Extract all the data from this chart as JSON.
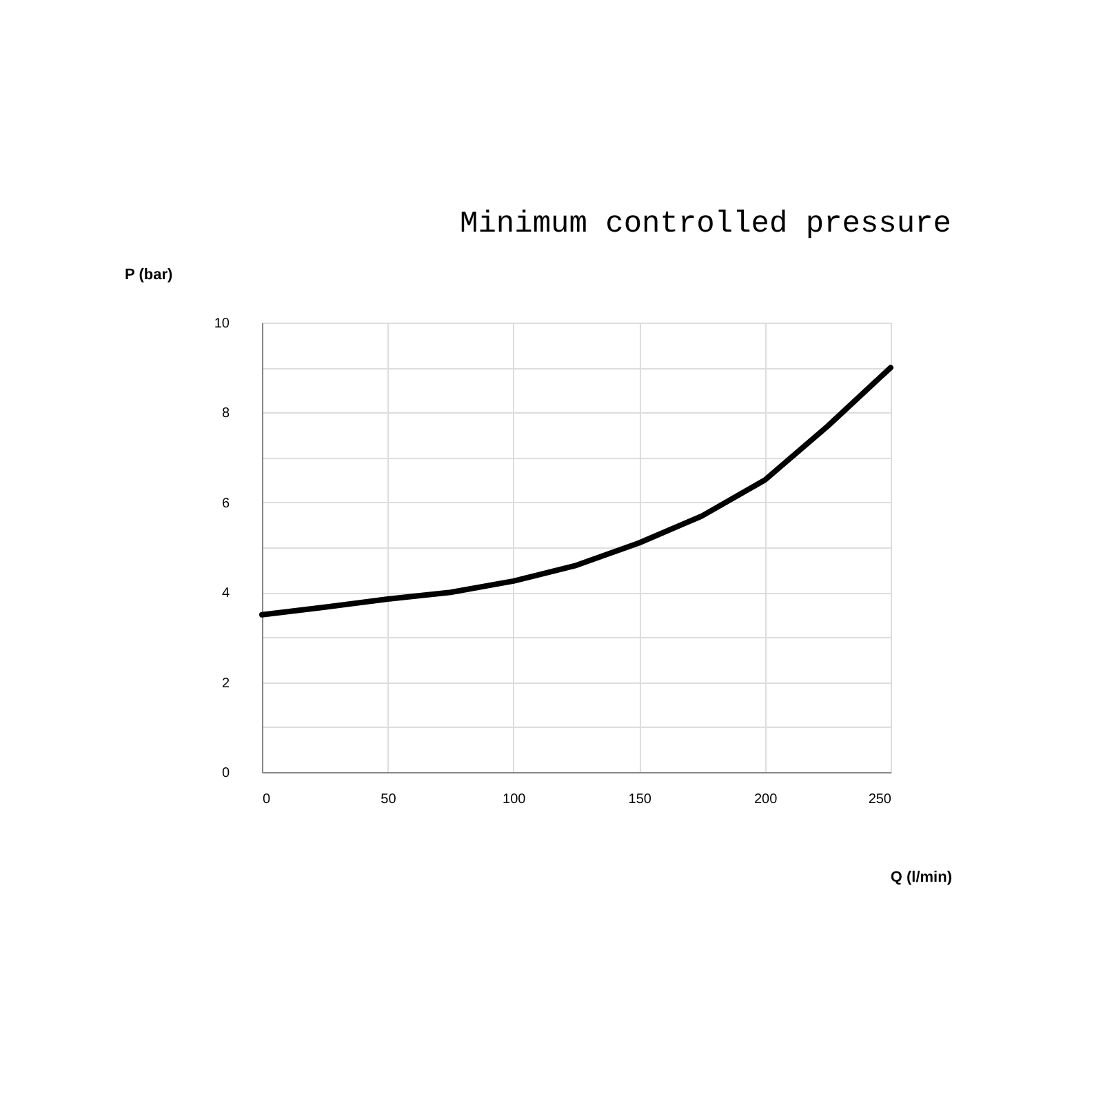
{
  "chart_data": {
    "type": "line",
    "title": "Minimum controlled pressure",
    "xlabel": "Q (l/min)",
    "ylabel": "P (bar)",
    "x": [
      0,
      25,
      50,
      75,
      100,
      125,
      150,
      175,
      200,
      225,
      250
    ],
    "series": [
      {
        "color": "#000000",
        "values": [
          3.5,
          3.67,
          3.85,
          4.0,
          4.25,
          4.6,
          5.1,
          5.7,
          6.5,
          7.7,
          9.0
        ]
      }
    ],
    "xlim": [
      0,
      250
    ],
    "xticks": [
      0,
      50,
      100,
      150,
      200,
      250
    ],
    "ylim": [
      0,
      10
    ],
    "yticks": [
      0,
      {
        "value": 1,
        "label": null
      },
      2,
      {
        "value": 3,
        "label": null
      },
      4,
      {
        "value": 5,
        "label": null
      },
      6,
      {
        "value": 7,
        "label": null
      },
      8,
      {
        "value": 9,
        "label": null
      },
      10
    ],
    "grid": true,
    "legend": false,
    "marker": "none",
    "line_style": "solid"
  }
}
